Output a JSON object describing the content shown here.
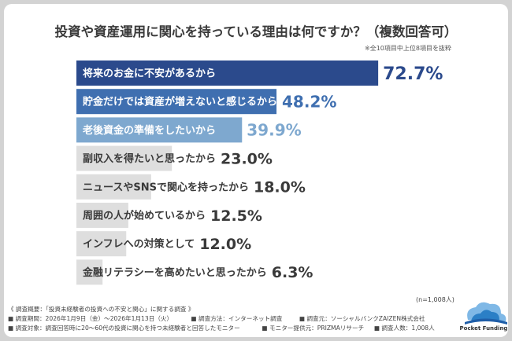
{
  "title": "投資や資産運用に関心を持っている理由は何ですか？（複数回答可）",
  "note": "※全10項目中上位8項目を抜粋",
  "sample_note": "(n=1,008人)",
  "chart_data": {
    "type": "bar",
    "orientation": "horizontal",
    "categories": [
      "将来のお金に不安があるから",
      "貯金だけでは資産が増えないと感じるから",
      "老後資金の準備をしたいから",
      "副収入を得たいと思ったから",
      "ニュースやSNSで関心を持ったから",
      "周囲の人が始めているから",
      "インフレへの対策として",
      "金融リテラシーを高めたいと思ったから"
    ],
    "values": [
      72.7,
      48.2,
      39.9,
      23.0,
      18.0,
      12.5,
      12.0,
      6.3
    ],
    "value_labels": [
      "72.7%",
      "48.2%",
      "39.9%",
      "23.0%",
      "18.0%",
      "12.5%",
      "12.0%",
      "6.3%"
    ],
    "unit": "%",
    "xlim": [
      0,
      100
    ],
    "bar_colors": [
      "#2b4a8c",
      "#3f6fb0",
      "#7ea8cf",
      "#dedede",
      "#dedede",
      "#dedede",
      "#dedede",
      "#dedede"
    ],
    "value_colors": [
      "#2b4a8c",
      "#3f6fb0",
      "#7ea8cf",
      "#3a3a3a",
      "#3a3a3a",
      "#3a3a3a",
      "#3a3a3a",
      "#3a3a3a"
    ],
    "label_colors": [
      "#ffffff",
      "#ffffff",
      "#ffffff",
      "#3a3a3a",
      "#3a3a3a",
      "#3a3a3a",
      "#3a3a3a",
      "#3a3a3a"
    ],
    "grid": false,
    "legend": "none"
  },
  "footer": {
    "line1": "《 調査概要：「投資未経験者の投資への不安と関心」に関する調査 》",
    "line2": [
      "■ 調査期間：2026年1月9日（金）〜2026年1月13日（火）",
      "■ 調査方法：インターネット調査",
      "■ 調査元：ソーシャルバンクZAIZEN株式会社"
    ],
    "line3": [
      "■ 調査対象：調査回答時に20〜60代の投資に関心を持つ未経験者と回答したモニター",
      "■ モニター提供元：PRIZMAリサーチ",
      "■ 調査人数：1,008人"
    ]
  },
  "logo": {
    "name": "cloud-logo",
    "text": "Pocket Funding",
    "colors": [
      "#2b7fc6",
      "#7fb8e6",
      "#1f5ea8"
    ]
  }
}
